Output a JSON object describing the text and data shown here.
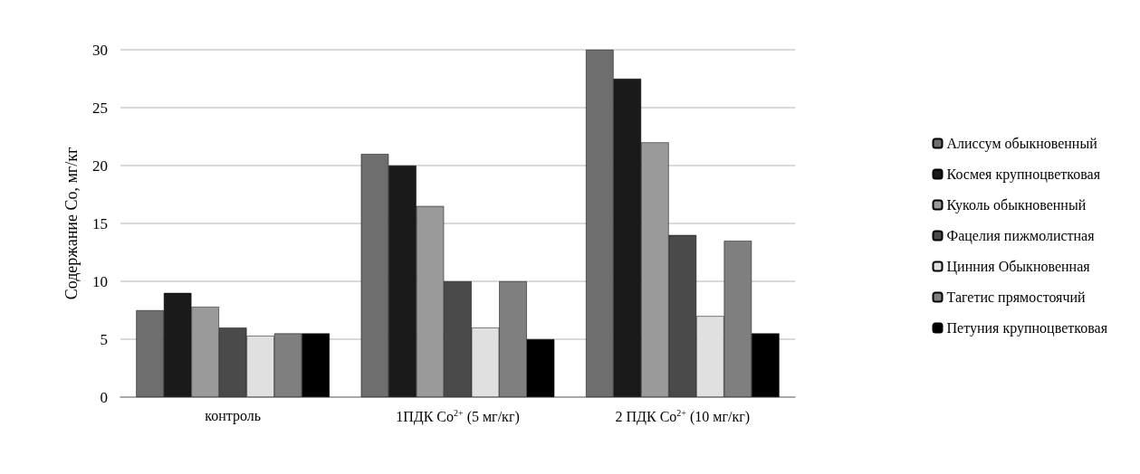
{
  "chart_data": {
    "type": "bar",
    "ylabel": "Содержание Co, мг/кг",
    "categories": [
      "контроль",
      "1ПДК Co$^{2+}$ (5 мг/кг)",
      "2 ПДК Co$^{2+}$ (10 мг/кг)"
    ],
    "series": [
      {
        "name": "Алиссум обыкновенный",
        "color": "#6e6e6e",
        "values": [
          7.5,
          21,
          30
        ]
      },
      {
        "name": "Космея крупноцветковая",
        "color": "#1a1a1a",
        "values": [
          9,
          20,
          27.5
        ]
      },
      {
        "name": "Куколь обыкновенный",
        "color": "#9a9a9a",
        "values": [
          7.8,
          16.5,
          22
        ]
      },
      {
        "name": "Фацелия пижмолистная",
        "color": "#4a4a4a",
        "values": [
          6,
          10,
          14
        ]
      },
      {
        "name": "Цинния Обыкновенная",
        "color": "#e0e0e0",
        "values": [
          5.3,
          6,
          7
        ]
      },
      {
        "name": "Тагетис прямостоячий",
        "color": "#7f7f7f",
        "values": [
          5.5,
          10,
          13.5
        ]
      },
      {
        "name": "Петуния крупноцветковая",
        "color": "#000000",
        "values": [
          5.5,
          5,
          5.5
        ]
      }
    ],
    "ylim": [
      0,
      30
    ],
    "yticks": [
      0,
      5,
      10,
      15,
      20,
      25,
      30
    ],
    "grid": "y",
    "legend": "right"
  }
}
